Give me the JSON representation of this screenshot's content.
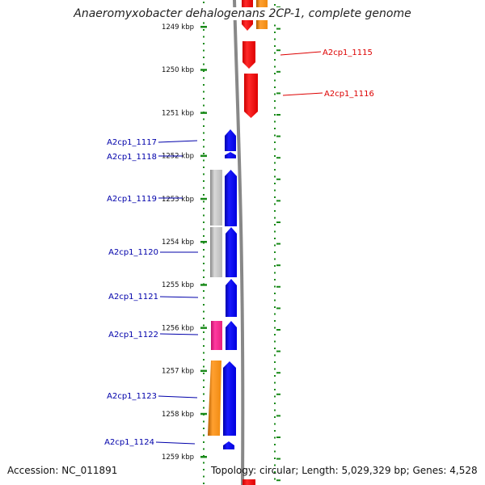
{
  "title": "Anaeromyxobacter dehalogenans 2CP-1, complete genome",
  "footer": {
    "accession": "Accession: NC_011891",
    "topology": "Topology: circular; Length: 5,029,329 bp; Genes: 4,528"
  },
  "ruler": {
    "ticks": [
      {
        "label": "1249 kbp",
        "kbp": 1249
      },
      {
        "label": "1250 kbp",
        "kbp": 1250
      },
      {
        "label": "1251 kbp",
        "kbp": 1251
      },
      {
        "label": "1252 kbp",
        "kbp": 1252
      },
      {
        "label": "1253 kbp",
        "kbp": 1253
      },
      {
        "label": "1254 kbp",
        "kbp": 1254
      },
      {
        "label": "1255 kbp",
        "kbp": 1255
      },
      {
        "label": "1256 kbp",
        "kbp": 1256
      },
      {
        "label": "1257 kbp",
        "kbp": 1257
      },
      {
        "label": "1258 kbp",
        "kbp": 1258
      },
      {
        "label": "1259 kbp",
        "kbp": 1259
      }
    ]
  },
  "genes": {
    "right": [
      {
        "label": "A2cp1_1115",
        "color": "#dd0000"
      },
      {
        "label": "A2cp1_1116",
        "color": "#dd0000"
      }
    ],
    "left": [
      {
        "label": "A2cp1_1117",
        "color": "#0000aa"
      },
      {
        "label": "A2cp1_1118",
        "color": "#0000aa"
      },
      {
        "label": "A2cp1_1119",
        "color": "#0000aa"
      },
      {
        "label": "A2cp1_1120",
        "color": "#0000aa"
      },
      {
        "label": "A2cp1_1121",
        "color": "#0000aa"
      },
      {
        "label": "A2cp1_1122",
        "color": "#0000aa"
      },
      {
        "label": "A2cp1_1123",
        "color": "#0000aa"
      },
      {
        "label": "A2cp1_1124",
        "color": "#0000aa"
      }
    ]
  },
  "colors": {
    "reverse_strand": "#ee0000",
    "forward_strand": "#0000ee",
    "grey_feature": "#bbbbbb",
    "orange_feature": "#f7941d",
    "pink_feature": "#ee2a8a",
    "ruler_dots": "#1a8a1a",
    "backbone": "#888888"
  }
}
